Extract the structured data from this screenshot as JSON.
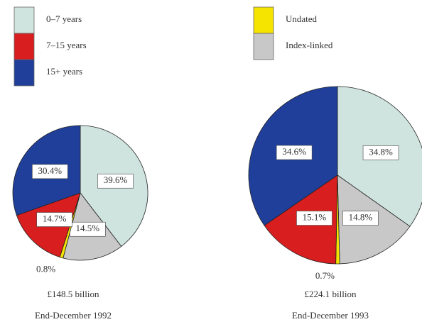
{
  "chart_data": [
    {
      "type": "pie",
      "categories": [
        "0–7 years",
        "Index-linked",
        "Undated",
        "7–15 years",
        "15+ years"
      ],
      "colors": [
        "#cfe3df",
        "#c8c8c8",
        "#f5e400",
        "#d81e1e",
        "#1f3f9a"
      ],
      "values": [
        39.6,
        14.5,
        0.8,
        14.7,
        30.4
      ],
      "value_labels": [
        "39.6%",
        "14.5%",
        "0.8%",
        "14.7%",
        "30.4%"
      ],
      "subtitle": "£148.5 billion",
      "caption": "End-December 1992"
    },
    {
      "type": "pie",
      "categories": [
        "0–7 years",
        "Index-linked",
        "Undated",
        "7–15 years",
        "15+ years"
      ],
      "colors": [
        "#cfe3df",
        "#c8c8c8",
        "#f5e400",
        "#d81e1e",
        "#1f3f9a"
      ],
      "values": [
        34.8,
        14.8,
        0.7,
        15.1,
        34.6
      ],
      "value_labels": [
        "34.8%",
        "14.8%",
        "0.7%",
        "15.1%",
        "34.6%"
      ],
      "subtitle": "£224.1 billion",
      "caption": "End-December 1993"
    }
  ]
}
